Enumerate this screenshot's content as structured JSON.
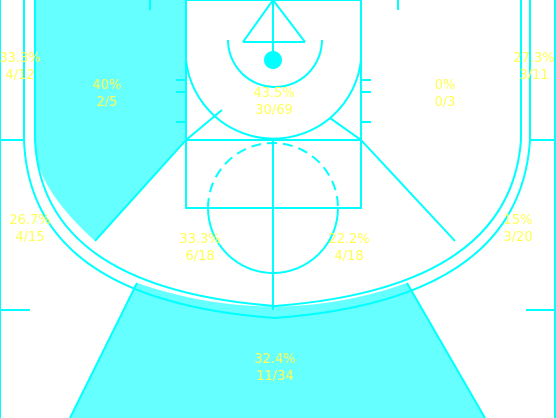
{
  "colors": {
    "line": "#00ffff",
    "zone_fill": "#66ffff",
    "label_text": "#ffff55",
    "background": "#ffffff"
  },
  "zones": [
    {
      "id": "left-corner-three",
      "pct": "33.3%",
      "made_att": "4/12",
      "highlighted": false
    },
    {
      "id": "right-corner-three",
      "pct": "27.3%",
      "made_att": "3/11",
      "highlighted": false
    },
    {
      "id": "left-baseline-mid",
      "pct": "40%",
      "made_att": "2/5",
      "highlighted": true
    },
    {
      "id": "restricted-area",
      "pct": "43.5%",
      "made_att": "30/69",
      "highlighted": false
    },
    {
      "id": "right-baseline-mid",
      "pct": "0%",
      "made_att": "0/3",
      "highlighted": false
    },
    {
      "id": "left-wing-three",
      "pct": "26.7%",
      "made_att": "4/15",
      "highlighted": false
    },
    {
      "id": "right-wing-three",
      "pct": "15%",
      "made_att": "3/20",
      "highlighted": false
    },
    {
      "id": "left-elbow-mid",
      "pct": "33.3%",
      "made_att": "6/18",
      "highlighted": false
    },
    {
      "id": "right-elbow-mid",
      "pct": "22.2%",
      "made_att": "4/18",
      "highlighted": false
    },
    {
      "id": "top-key-three",
      "pct": "32.4%",
      "made_att": "11/34",
      "highlighted": true
    }
  ]
}
